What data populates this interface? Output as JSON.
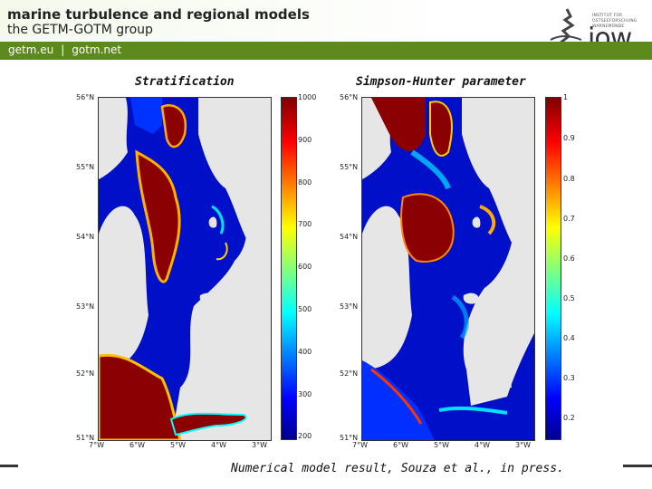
{
  "header": {
    "title_line1": "marine turbulence and regional models",
    "title_line2": "the GETM-GOTM group"
  },
  "nav": {
    "link1": "getm.eu",
    "separator": "|",
    "link2": "gotm.net"
  },
  "logo": {
    "line1": "INSTITUT FÜR",
    "line2": "OSTSEEFORSCHUNG",
    "line3": "WARNEMÜNDE",
    "wordmark": "iow"
  },
  "panels": [
    {
      "caption": "Stratification",
      "lat_labels": [
        "56°N",
        "55°N",
        "54°N",
        "53°N",
        "52°N",
        "51°N"
      ],
      "lon_labels": [
        "7°W",
        "6°W",
        "5°W",
        "4°W",
        "3°W"
      ],
      "colorbar_ticks": [
        "1000",
        "900",
        "800",
        "700",
        "600",
        "500",
        "400",
        "300",
        "200"
      ]
    },
    {
      "caption": "Simpson-Hunter parameter",
      "lat_labels": [
        "56°N",
        "55°N",
        "54°N",
        "53°N",
        "52°N",
        "51°N"
      ],
      "lon_labels": [
        "7°W",
        "6°W",
        "5°W",
        "4°W",
        "3°W"
      ],
      "colorbar_ticks": [
        "1",
        "0.9",
        "0.8",
        "0.7",
        "0.6",
        "0.5",
        "0.4",
        "0.3",
        "0.2"
      ]
    }
  ],
  "footer": {
    "caption": "Numerical model result, Souza et al., in press."
  },
  "colors": {
    "nav_bar": "#5c8a1d",
    "land": "#e6e6e6",
    "sea_low": "#0010c8",
    "sea_high": "#8b0000"
  }
}
